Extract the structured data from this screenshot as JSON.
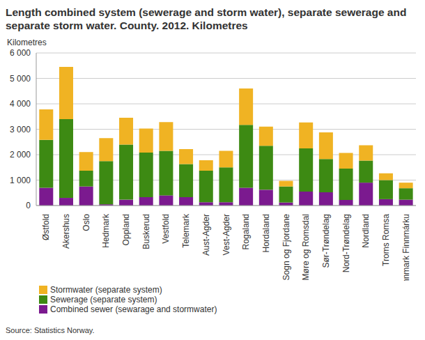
{
  "chart_data": {
    "type": "bar",
    "title": "Length combined system (sewerage and storm water), separate sewerage and separate storm water. County. 2012. Kilometres",
    "y_label": "Kilometres",
    "source": "Source: Statistics Norway.",
    "stacked": true,
    "grid": true,
    "legend": "bottom-left",
    "categories": [
      "Østfold",
      "Akershus",
      "Oslo",
      "Hedmark",
      "Oppland",
      "Buskerud",
      "Vestfold",
      "Telemark",
      "Aust-Agder",
      "Vest-Agder",
      "Rogaland",
      "Hordaland",
      "Sogn og Fjordane",
      "Møre og Romsdal",
      "Sør-Trøndelag",
      "Nord-Trøndelag",
      "Nordland",
      "Troms Romsa",
      "Finnmark Finnmárku"
    ],
    "series": [
      {
        "name": "Combined sewer (sewarage and stormwater)",
        "color": "#7b1a8f",
        "values": [
          700,
          300,
          750,
          50,
          230,
          330,
          400,
          330,
          130,
          130,
          700,
          620,
          120,
          550,
          520,
          220,
          900,
          250,
          230
        ]
      },
      {
        "name": "Sewerage (separate system)",
        "color": "#3d8a13",
        "values": [
          1880,
          3100,
          620,
          1700,
          2170,
          1750,
          1750,
          1300,
          1240,
          1370,
          2470,
          1730,
          630,
          1700,
          1310,
          1230,
          870,
          750,
          450
        ]
      },
      {
        "name": "Stormwater (separate system)",
        "color": "#f0b323",
        "values": [
          1200,
          2050,
          730,
          900,
          1050,
          950,
          1130,
          590,
          410,
          650,
          1430,
          750,
          220,
          1020,
          1050,
          620,
          600,
          270,
          220
        ]
      }
    ],
    "ylim": [
      0,
      6000
    ],
    "yticks": [
      0,
      {
        "value": 1000,
        "label": "1 000"
      },
      {
        "value": 2000,
        "label": "2 000"
      },
      {
        "value": 3000,
        "label": "3 000"
      },
      {
        "value": 4000,
        "label": "4 000"
      },
      {
        "value": 5000,
        "label": "5 000"
      },
      {
        "value": 6000,
        "label": "6 000"
      }
    ]
  }
}
